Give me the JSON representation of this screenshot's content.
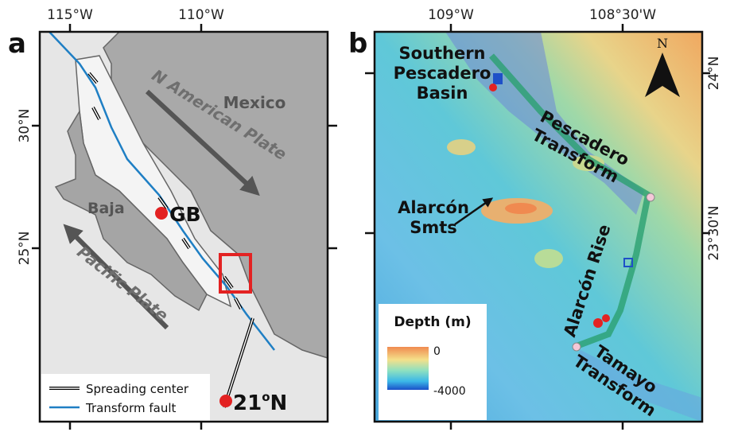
{
  "panel_a": {
    "label": "a",
    "x_ticks": [
      "115°W",
      "110°W"
    ],
    "y_ticks": [
      "30°N",
      "25°N"
    ],
    "labels": {
      "mexico": "Mexico",
      "n_american_plate": "N American Plate",
      "baja": "Baja",
      "gb": "GB",
      "pacific_plate": "Pacific Plate"
    },
    "site_21n": {
      "number": "21",
      "degree": "o",
      "hemisphere": "N"
    },
    "legend": [
      "Spreading center",
      "Transform fault"
    ]
  },
  "panel_b": {
    "label": "b",
    "x_ticks": [
      "109°W",
      "108°30'W"
    ],
    "y_ticks": [
      "24°N",
      "23°30'N"
    ],
    "north": "N",
    "labels": {
      "southern_pescadero_basin": [
        "Southern",
        "Pescadero",
        "Basin"
      ],
      "pescadero_transform": [
        "Pescadero",
        "Transform"
      ],
      "alarcon_smts": [
        "Alarcón",
        "Smts"
      ],
      "alarcon_rise": "Alarcón Rise",
      "tamayo_transform": [
        "Tamayo",
        "Transform"
      ]
    },
    "colorbar": {
      "title": "Depth (m)",
      "ticks": [
        0,
        -4000
      ]
    }
  }
}
